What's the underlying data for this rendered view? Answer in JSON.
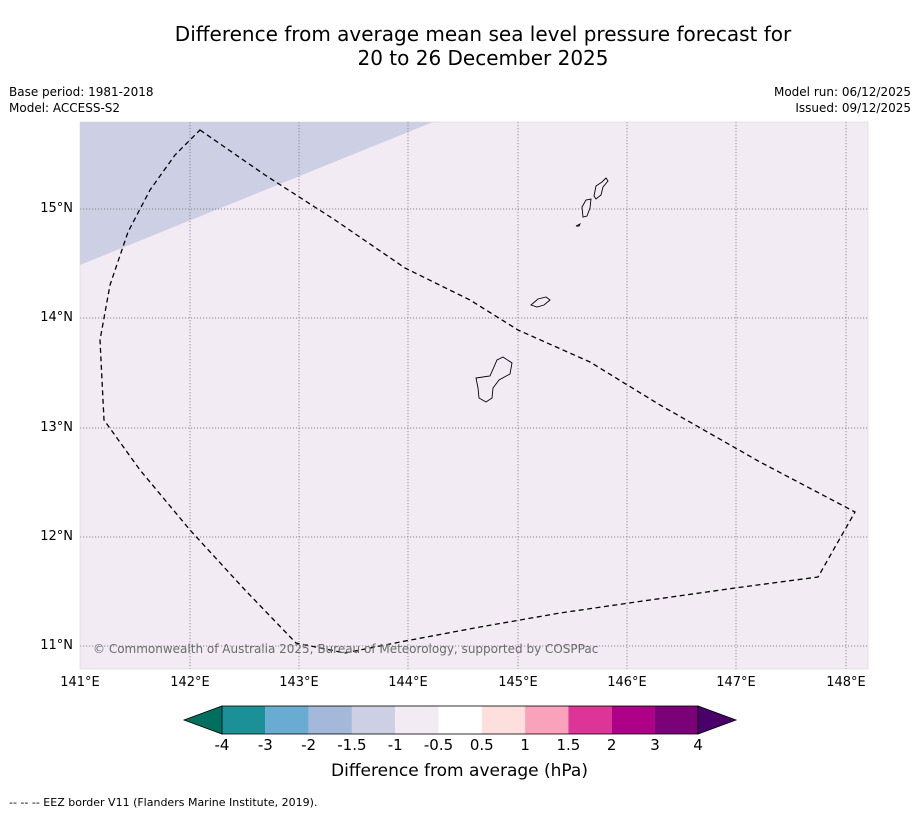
{
  "title": {
    "line1": "Difference from average mean sea level pressure forecast for",
    "line2": "20 to 26 December 2025"
  },
  "meta": {
    "base_period": "Base period: 1981-2018",
    "model": "Model: ACCESS-S2",
    "model_run": "Model run: 06/12/2025",
    "issued": "Issued: 09/12/2025"
  },
  "map": {
    "lat_labels": [
      "15°N",
      "14°N",
      "13°N",
      "12°N",
      "11°N"
    ],
    "lon_labels": [
      "141°E",
      "142°E",
      "143°E",
      "144°E",
      "145°E",
      "146°E",
      "147°E",
      "148°E"
    ],
    "lon_range": [
      141,
      148.2
    ],
    "lat_range": [
      10.8,
      15.8
    ],
    "background_color": "#f3ebf4",
    "anomaly_region_color": "#cdd0e4",
    "anomaly_region_value": "-1.5 to -1",
    "copyright": "© Commonwealth of Australia 2025, Bureau of Meteorology, supported by COSPPac"
  },
  "colorbar": {
    "ticks": [
      "-4",
      "-3",
      "-2",
      "-1.5",
      "-1",
      "-0.5",
      "0.5",
      "1",
      "1.5",
      "2",
      "3",
      "4"
    ],
    "colors": [
      "#006f60",
      "#1c9097",
      "#6aabd2",
      "#a4b9da",
      "#cdd0e4",
      "#f3ebf4",
      "#ffffff",
      "#fde0dd",
      "#faa1bb",
      "#dd3497",
      "#ad0187",
      "#7a0178",
      "#49006a"
    ],
    "label": "Difference from average (hPa)"
  },
  "footnote": "--  --  -- EEZ border V11 (Flanders Marine Institute, 2019)."
}
